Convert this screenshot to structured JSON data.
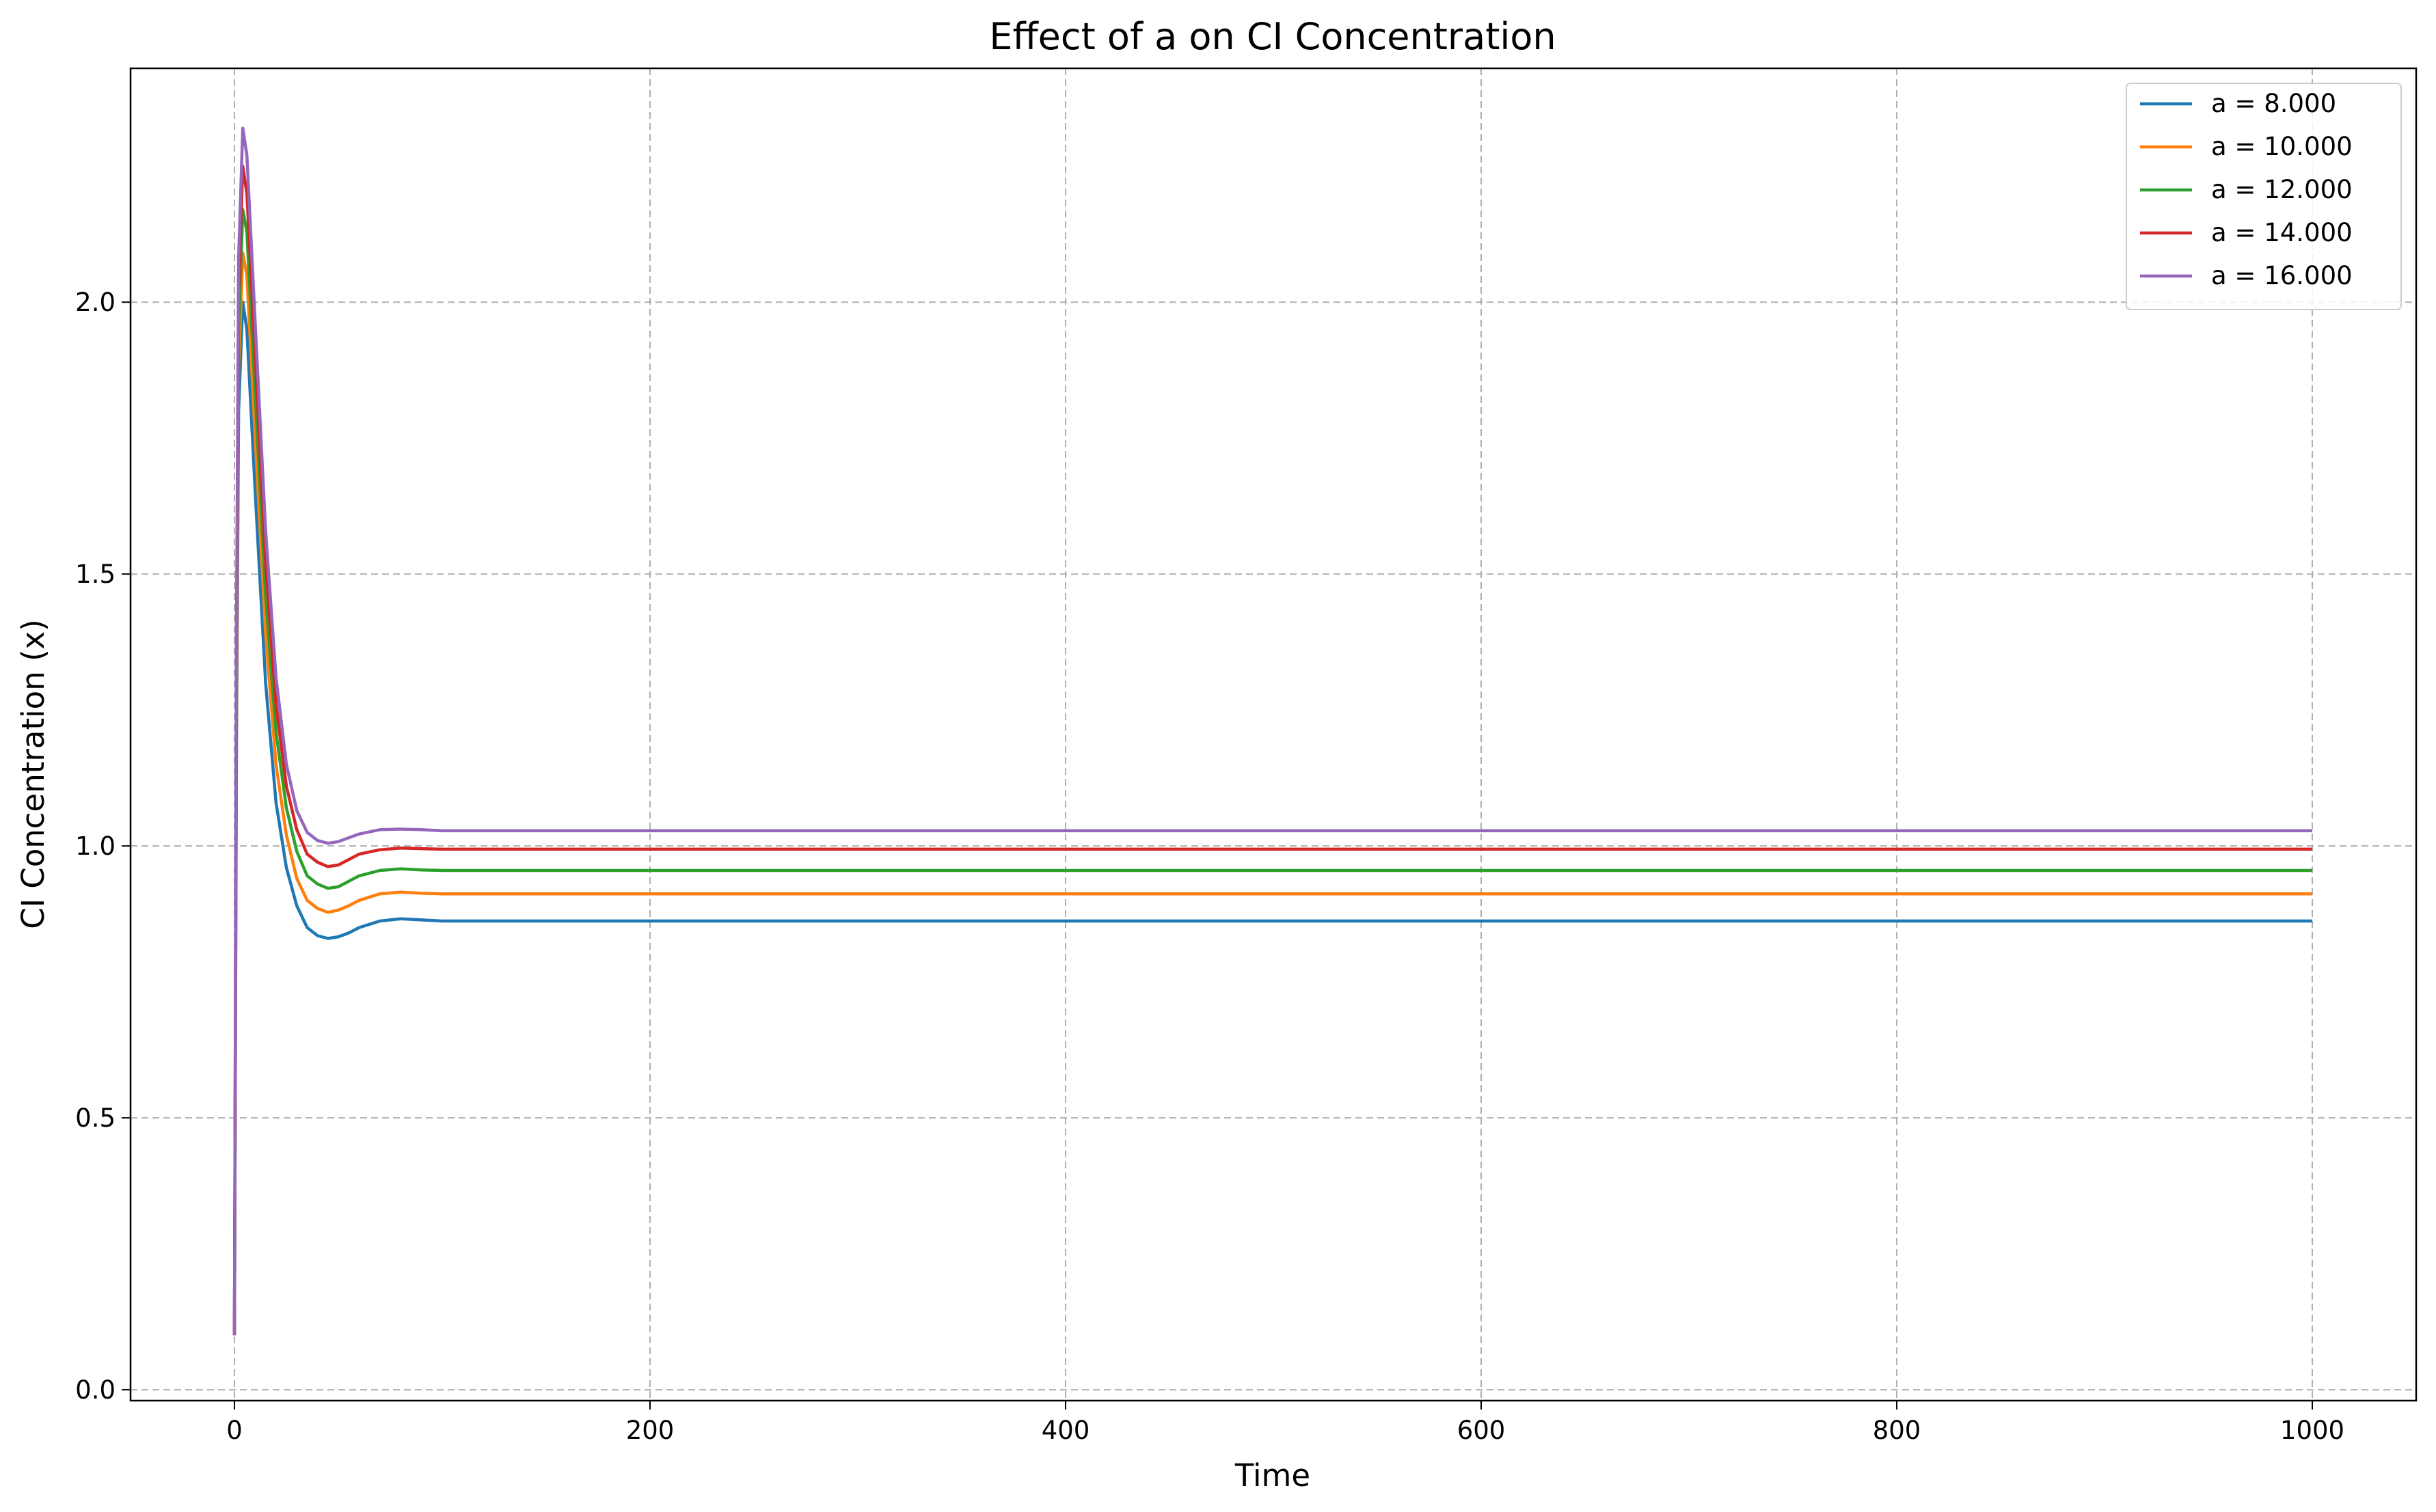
{
  "chart_data": {
    "type": "line",
    "title": "Effect of a on CI Concentration",
    "xlabel": "Time",
    "ylabel": "CI Concentration (x)",
    "xlim": [
      -50,
      1050
    ],
    "ylim": [
      -0.02,
      2.43
    ],
    "xticks": [
      "0",
      "200",
      "400",
      "600",
      "800",
      "1000"
    ],
    "yticks": [
      "0.0",
      "0.5",
      "1.0",
      "1.5",
      "2.0"
    ],
    "grid": true,
    "legend_position": "top-right",
    "x": [
      0,
      1,
      2,
      4,
      6,
      10,
      15,
      20,
      25,
      30,
      35,
      40,
      45,
      50,
      55,
      60,
      70,
      80,
      90,
      100,
      120,
      150,
      200,
      300,
      400,
      500,
      600,
      700,
      800,
      900,
      1000
    ],
    "series": [
      {
        "name": "a = 8.000",
        "color": "#1f77b4",
        "values": [
          0.1,
          1.2,
          1.8,
          2.0,
          1.95,
          1.65,
          1.3,
          1.08,
          0.96,
          0.89,
          0.85,
          0.835,
          0.83,
          0.833,
          0.84,
          0.85,
          0.862,
          0.866,
          0.864,
          0.862,
          0.862,
          0.862,
          0.862,
          0.862,
          0.862,
          0.862,
          0.862,
          0.862,
          0.862,
          0.862,
          0.862
        ]
      },
      {
        "name": "a = 10.000",
        "color": "#ff7f0e",
        "values": [
          0.1,
          1.25,
          1.88,
          2.09,
          2.05,
          1.75,
          1.39,
          1.15,
          1.02,
          0.94,
          0.9,
          0.885,
          0.878,
          0.882,
          0.89,
          0.9,
          0.912,
          0.915,
          0.913,
          0.912,
          0.912,
          0.912,
          0.912,
          0.912,
          0.912,
          0.912,
          0.912,
          0.912,
          0.912,
          0.912,
          0.912
        ]
      },
      {
        "name": "a = 12.000",
        "color": "#2ca02c",
        "values": [
          0.1,
          1.3,
          1.95,
          2.17,
          2.13,
          1.83,
          1.46,
          1.21,
          1.07,
          0.99,
          0.945,
          0.93,
          0.922,
          0.925,
          0.935,
          0.945,
          0.955,
          0.958,
          0.956,
          0.955,
          0.955,
          0.955,
          0.955,
          0.955,
          0.955,
          0.955,
          0.955,
          0.955,
          0.955,
          0.955,
          0.955
        ]
      },
      {
        "name": "a = 14.000",
        "color": "#d62728",
        "values": [
          0.1,
          1.35,
          2.02,
          2.25,
          2.2,
          1.9,
          1.52,
          1.26,
          1.11,
          1.03,
          0.985,
          0.97,
          0.962,
          0.965,
          0.975,
          0.985,
          0.993,
          0.996,
          0.995,
          0.994,
          0.994,
          0.994,
          0.994,
          0.994,
          0.994,
          0.994,
          0.994,
          0.994,
          0.994,
          0.994,
          0.994
        ]
      },
      {
        "name": "a = 16.000",
        "color": "#9467bd",
        "values": [
          0.1,
          1.4,
          2.08,
          2.32,
          2.27,
          1.96,
          1.58,
          1.31,
          1.15,
          1.065,
          1.025,
          1.01,
          1.005,
          1.008,
          1.015,
          1.022,
          1.03,
          1.031,
          1.03,
          1.028,
          1.028,
          1.028,
          1.028,
          1.028,
          1.028,
          1.028,
          1.028,
          1.028,
          1.028,
          1.028,
          1.028
        ]
      }
    ]
  }
}
